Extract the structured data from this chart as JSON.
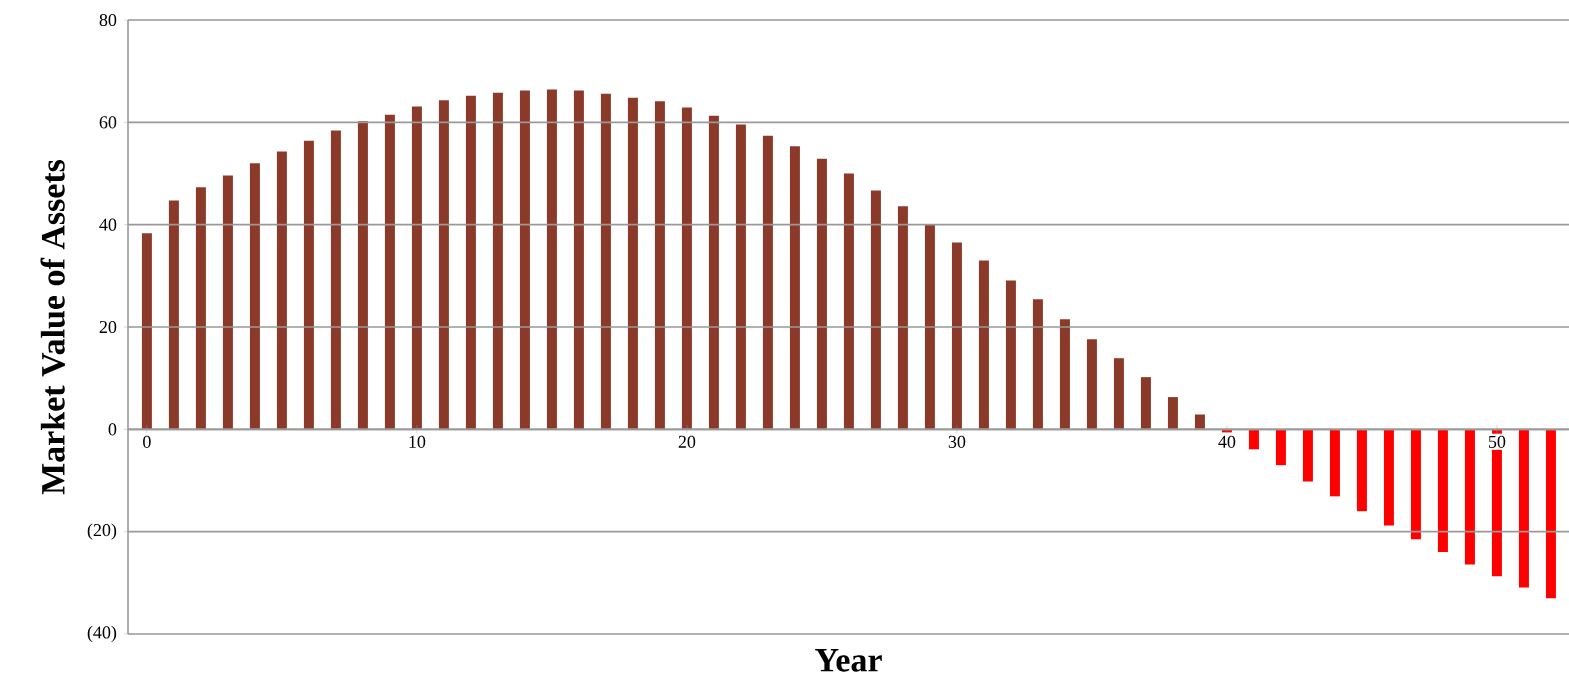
{
  "chart_data": {
    "type": "bar",
    "xlabel": "Year",
    "ylabel": "Market Value of Assets",
    "x": [
      0,
      1,
      2,
      3,
      4,
      5,
      6,
      7,
      8,
      9,
      10,
      11,
      12,
      13,
      14,
      15,
      16,
      17,
      18,
      19,
      20,
      21,
      22,
      23,
      24,
      25,
      26,
      27,
      28,
      29,
      30,
      31,
      32,
      33,
      34,
      35,
      36,
      37,
      38,
      39,
      40,
      41,
      42,
      43,
      44,
      45,
      46,
      47,
      48,
      49,
      50,
      51,
      52
    ],
    "values": [
      38.3,
      44.7,
      47.3,
      49.6,
      52.0,
      54.3,
      56.4,
      58.4,
      60.2,
      61.5,
      63.1,
      64.3,
      65.2,
      65.8,
      66.2,
      66.4,
      66.2,
      65.6,
      64.8,
      64.1,
      62.9,
      61.3,
      59.6,
      57.4,
      55.3,
      52.9,
      50.0,
      46.7,
      43.6,
      40.0,
      36.5,
      33.0,
      29.1,
      25.4,
      21.5,
      17.6,
      13.9,
      10.2,
      6.3,
      2.9,
      -0.6,
      -3.9,
      -7.0,
      -10.2,
      -13.1,
      -16.0,
      -18.8,
      -21.5,
      -24.0,
      -26.4,
      -28.7,
      -30.9,
      -33.0
    ],
    "colors": [
      "#8b3a2a",
      "#8b3a2a",
      "#8b3a2a",
      "#8b3a2a",
      "#8b3a2a",
      "#8b3a2a",
      "#8b3a2a",
      "#8b3a2a",
      "#8b3a2a",
      "#8b3a2a",
      "#8b3a2a",
      "#8b3a2a",
      "#8b3a2a",
      "#8b3a2a",
      "#8b3a2a",
      "#8b3a2a",
      "#8b3a2a",
      "#8b3a2a",
      "#8b3a2a",
      "#8b3a2a",
      "#8b3a2a",
      "#8b3a2a",
      "#8b3a2a",
      "#8b3a2a",
      "#8b3a2a",
      "#8b3a2a",
      "#8b3a2a",
      "#8b3a2a",
      "#8b3a2a",
      "#8b3a2a",
      "#8b3a2a",
      "#8b3a2a",
      "#8b3a2a",
      "#8b3a2a",
      "#8b3a2a",
      "#8b3a2a",
      "#8b3a2a",
      "#8b3a2a",
      "#8b3a2a",
      "#8b3a2a",
      "#ff0000",
      "#ff0000",
      "#ff0000",
      "#ff0000",
      "#ff0000",
      "#ff0000",
      "#ff0000",
      "#ff0000",
      "#ff0000",
      "#ff0000",
      "#ff0000",
      "#ff0000",
      "#ff0000"
    ],
    "xlim": [
      -0.7,
      52.67
    ],
    "xticks": [
      0,
      10,
      20,
      30,
      40,
      50
    ],
    "ylim": [
      -40,
      80
    ],
    "yticks": [
      {
        "value": -40,
        "label": "(40)"
      },
      {
        "value": -20,
        "label": "(20)"
      },
      0,
      20,
      40,
      60,
      80
    ],
    "grid": "y"
  }
}
